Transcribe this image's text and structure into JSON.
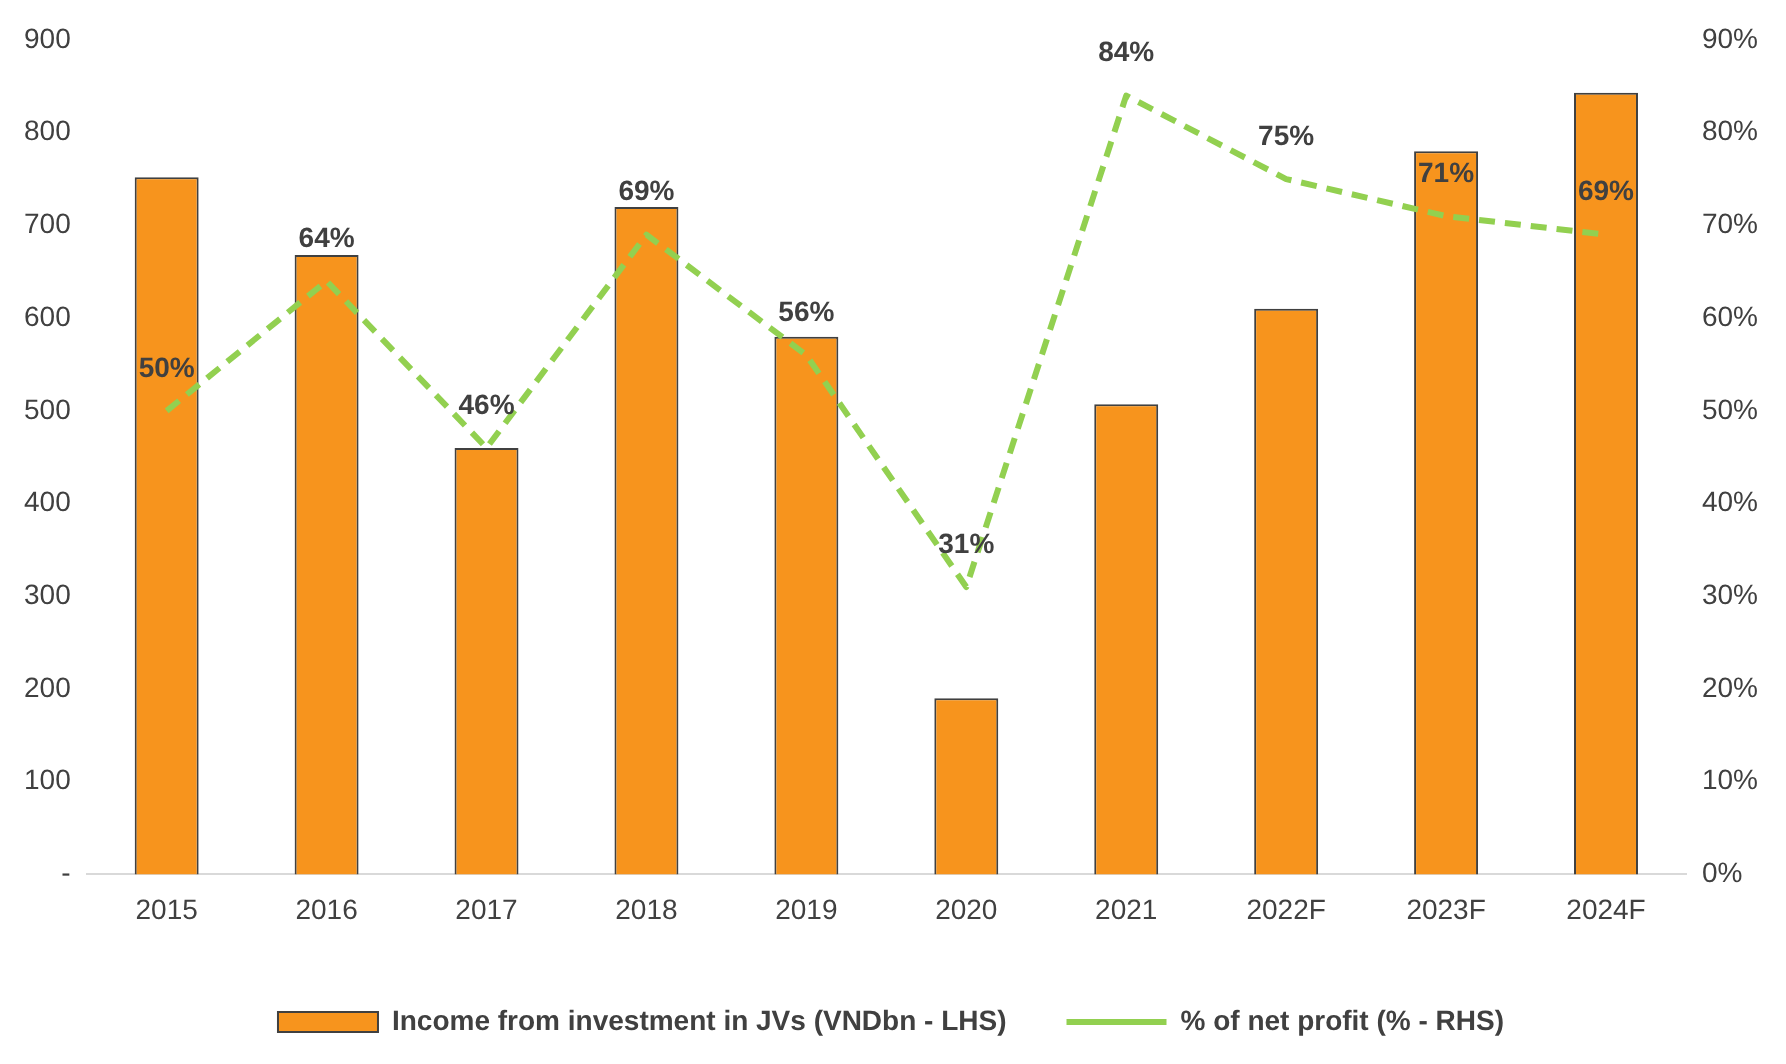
{
  "chart_data": {
    "type": "bar",
    "categories": [
      "2015",
      "2016",
      "2017",
      "2018",
      "2019",
      "2020",
      "2021",
      "2022F",
      "2023F",
      "2024F"
    ],
    "series": [
      {
        "name": "Income from investment in JVs (VNDbn - LHS)",
        "color": "#f7941d",
        "values": [
          752,
          668,
          460,
          720,
          580,
          190,
          507,
          610,
          780,
          843
        ]
      },
      {
        "name": "% of net profit (% - RHS)",
        "type": "line",
        "axis": "y2",
        "color": "#92d050",
        "line_style": "dashed",
        "marker": "none",
        "values": [
          50,
          64,
          46,
          69,
          56,
          31,
          84,
          75,
          71,
          69
        ],
        "value_labels": [
          "50%",
          "64%",
          "46%",
          "69%",
          "56%",
          "31%",
          "84%",
          "75%",
          "71%",
          "69%"
        ]
      }
    ],
    "ylim": [
      0,
      900
    ],
    "yticks": [
      {
        "value": 0,
        "label": "-"
      },
      100,
      200,
      300,
      400,
      500,
      600,
      700,
      800,
      900
    ],
    "y2lim": [
      0,
      90
    ],
    "y2ticks": [
      {
        "value": 0,
        "label": "0%"
      },
      {
        "value": 10,
        "label": "10%"
      },
      {
        "value": 20,
        "label": "20%"
      },
      {
        "value": 30,
        "label": "30%"
      },
      {
        "value": 40,
        "label": "40%"
      },
      {
        "value": 50,
        "label": "50%"
      },
      {
        "value": 60,
        "label": "60%"
      },
      {
        "value": 70,
        "label": "70%"
      },
      {
        "value": 80,
        "label": "80%"
      },
      {
        "value": 90,
        "label": "90%"
      }
    ],
    "grid": false,
    "legend": "bottom"
  }
}
